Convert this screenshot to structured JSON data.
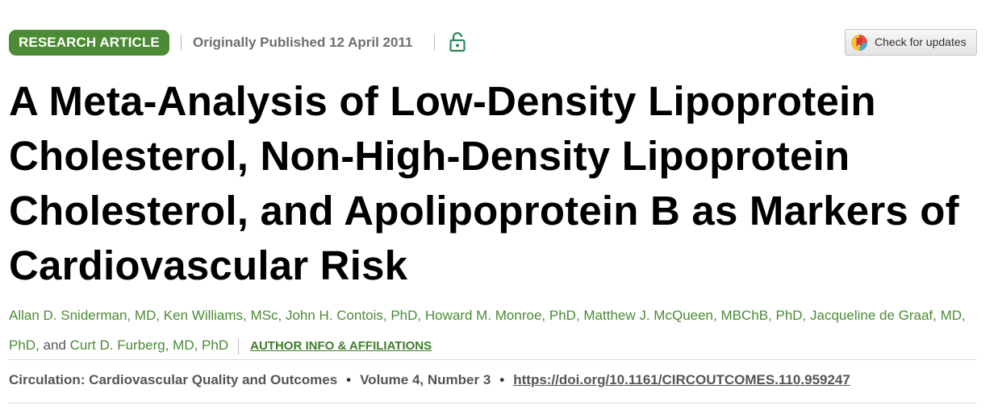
{
  "header": {
    "badge": "RESEARCH ARTICLE",
    "published": "Originally Published 12 April 2011",
    "check_updates": "Check for updates",
    "lock_icon": "open-lock-icon"
  },
  "article": {
    "title": "A Meta-Analysis of Low-Density Lipoprotein Cholesterol, Non-High-Density Lipoprotein Cholesterol, and Apolipoprotein B as Markers of Cardiovascular Risk"
  },
  "authors": {
    "list": [
      "Allan D. Sniderman, MD",
      "Ken Williams, MSc",
      "John H. Contois, PhD",
      "Howard M. Monroe, PhD",
      "Matthew J. McQueen, MBChB, PhD",
      "Jacqueline de Graaf, MD, PhD",
      "Curt D. Furberg, MD, PhD"
    ],
    "and_word": "and",
    "affiliations_link": "AUTHOR INFO & AFFILIATIONS"
  },
  "citation": {
    "journal": "Circulation: Cardiovascular Quality and Outcomes",
    "volume": "Volume 4, Number 3",
    "doi": "https://doi.org/10.1161/CIRCOUTCOMES.110.959247"
  },
  "colors": {
    "accent_green": "#4b8b34",
    "title_black": "#000000",
    "muted_gray": "#555555"
  }
}
